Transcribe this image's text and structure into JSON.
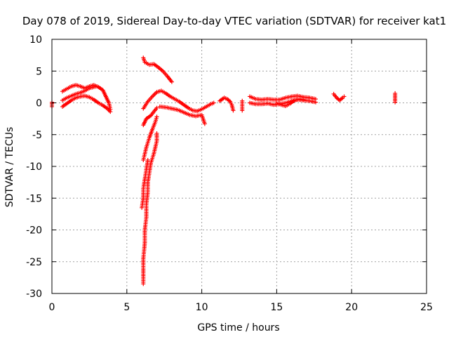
{
  "chart_data": {
    "type": "scatter",
    "title": "Day 078 of 2019, Sidereal Day-to-day VTEC variation (SDTVAR) for receiver kat1",
    "xlabel": "GPS time / hours",
    "ylabel": "SDTVAR / TECUs",
    "xlim": [
      0,
      25
    ],
    "ylim": [
      -30,
      10
    ],
    "xticks": [
      0,
      5,
      10,
      15,
      20,
      25
    ],
    "yticks": [
      10,
      5,
      0,
      -5,
      -10,
      -15,
      -20,
      -25,
      -30
    ],
    "grid": true,
    "marker": "+",
    "color": "#ff0000",
    "series": [
      {
        "name": "kat1",
        "segments": [
          [
            [
              0.0,
              0.1
            ],
            [
              0.0,
              -0.6
            ]
          ],
          [
            [
              0.7,
              1.8
            ],
            [
              1.0,
              2.2
            ],
            [
              1.3,
              2.6
            ],
            [
              1.6,
              2.8
            ],
            [
              1.9,
              2.6
            ],
            [
              2.2,
              2.3
            ],
            [
              2.5,
              2.6
            ],
            [
              2.8,
              2.8
            ],
            [
              3.1,
              2.5
            ],
            [
              3.4,
              2.0
            ],
            [
              3.6,
              1.0
            ],
            [
              3.8,
              0.0
            ],
            [
              3.9,
              -1.0
            ]
          ],
          [
            [
              0.7,
              0.4
            ],
            [
              1.0,
              0.8
            ],
            [
              1.3,
              1.1
            ],
            [
              1.6,
              1.4
            ],
            [
              1.9,
              1.6
            ],
            [
              2.2,
              1.9
            ],
            [
              2.5,
              2.3
            ],
            [
              2.8,
              2.5
            ],
            [
              3.0,
              2.6
            ]
          ],
          [
            [
              0.7,
              -0.6
            ],
            [
              1.0,
              -0.1
            ],
            [
              1.3,
              0.4
            ],
            [
              1.6,
              0.8
            ],
            [
              1.9,
              1.0
            ],
            [
              2.2,
              1.1
            ],
            [
              2.5,
              0.9
            ],
            [
              2.8,
              0.5
            ],
            [
              3.1,
              0.0
            ],
            [
              3.4,
              -0.4
            ],
            [
              3.7,
              -0.9
            ],
            [
              3.9,
              -1.4
            ]
          ],
          [
            [
              6.1,
              7.1
            ],
            [
              6.2,
              6.4
            ],
            [
              6.5,
              6.0
            ],
            [
              6.8,
              6.1
            ],
            [
              7.1,
              5.6
            ],
            [
              7.4,
              5.0
            ],
            [
              7.7,
              4.2
            ],
            [
              8.0,
              3.3
            ]
          ],
          [
            [
              6.1,
              -0.9
            ],
            [
              6.4,
              0.2
            ],
            [
              6.7,
              1.0
            ],
            [
              7.0,
              1.7
            ],
            [
              7.3,
              1.9
            ],
            [
              7.6,
              1.5
            ],
            [
              7.9,
              1.0
            ],
            [
              8.2,
              0.6
            ],
            [
              8.5,
              0.2
            ],
            [
              8.8,
              -0.3
            ],
            [
              9.1,
              -0.8
            ],
            [
              9.4,
              -1.2
            ],
            [
              9.7,
              -1.3
            ],
            [
              10.0,
              -1.0
            ],
            [
              10.3,
              -0.6
            ],
            [
              10.6,
              -0.2
            ],
            [
              10.8,
              0.0
            ]
          ],
          [
            [
              7.2,
              -0.6
            ],
            [
              7.6,
              -0.7
            ],
            [
              8.0,
              -0.9
            ],
            [
              8.4,
              -1.1
            ],
            [
              8.8,
              -1.5
            ],
            [
              9.2,
              -1.9
            ],
            [
              9.6,
              -2.1
            ],
            [
              10.0,
              -1.9
            ],
            [
              10.2,
              -3.3
            ]
          ],
          [
            [
              6.1,
              -3.5
            ],
            [
              6.3,
              -2.5
            ],
            [
              6.6,
              -2.0
            ],
            [
              6.8,
              -1.4
            ],
            [
              7.0,
              -0.8
            ]
          ],
          [
            [
              6.1,
              -9.0
            ],
            [
              6.3,
              -7.0
            ],
            [
              6.5,
              -5.5
            ],
            [
              6.7,
              -4.2
            ],
            [
              6.9,
              -3.0
            ],
            [
              7.0,
              -2.2
            ]
          ],
          [
            [
              6.1,
              -28.5
            ],
            [
              6.1,
              -27.2
            ],
            [
              6.1,
              -26.0
            ],
            [
              6.1,
              -24.5
            ],
            [
              6.2,
              -22.0
            ],
            [
              6.2,
              -20.0
            ],
            [
              6.3,
              -18.0
            ],
            [
              6.3,
              -16.0
            ],
            [
              6.4,
              -14.0
            ],
            [
              6.4,
              -12.5
            ],
            [
              6.5,
              -11.0
            ],
            [
              6.6,
              -9.5
            ],
            [
              6.8,
              -8.0
            ],
            [
              7.0,
              -6.0
            ],
            [
              7.0,
              -4.8
            ]
          ],
          [
            [
              6.0,
              -16.5
            ],
            [
              6.1,
              -15.0
            ],
            [
              6.1,
              -13.5
            ],
            [
              6.2,
              -12.0
            ],
            [
              6.3,
              -10.5
            ],
            [
              6.4,
              -9.0
            ]
          ],
          [
            [
              11.2,
              0.3
            ],
            [
              11.5,
              0.8
            ],
            [
              11.7,
              0.6
            ],
            [
              11.9,
              0.2
            ],
            [
              12.0,
              -0.3
            ],
            [
              12.1,
              -1.2
            ]
          ],
          [
            [
              12.7,
              0.3
            ],
            [
              12.7,
              -1.2
            ]
          ],
          [
            [
              13.2,
              1.0
            ],
            [
              13.6,
              0.6
            ],
            [
              14.0,
              0.5
            ],
            [
              14.4,
              0.6
            ],
            [
              14.8,
              0.5
            ],
            [
              15.2,
              0.5
            ],
            [
              15.6,
              0.8
            ],
            [
              16.0,
              1.0
            ],
            [
              16.4,
              1.1
            ],
            [
              16.8,
              0.9
            ],
            [
              17.2,
              0.8
            ],
            [
              17.6,
              0.6
            ]
          ],
          [
            [
              13.2,
              0.0
            ],
            [
              13.6,
              -0.2
            ],
            [
              14.0,
              -0.2
            ],
            [
              14.4,
              -0.1
            ],
            [
              14.8,
              -0.3
            ],
            [
              15.2,
              -0.2
            ],
            [
              15.6,
              0.0
            ],
            [
              16.0,
              0.3
            ],
            [
              16.4,
              0.5
            ],
            [
              16.8,
              0.4
            ],
            [
              17.2,
              0.3
            ],
            [
              17.6,
              0.1
            ]
          ],
          [
            [
              15.0,
              0.0
            ],
            [
              15.3,
              -0.3
            ],
            [
              15.6,
              -0.5
            ],
            [
              15.9,
              -0.1
            ],
            [
              16.2,
              0.4
            ],
            [
              16.5,
              0.6
            ],
            [
              16.8,
              0.5
            ]
          ],
          [
            [
              18.8,
              1.4
            ],
            [
              19.0,
              0.8
            ],
            [
              19.2,
              0.4
            ],
            [
              19.4,
              0.8
            ],
            [
              19.5,
              1.0
            ]
          ],
          [
            [
              22.9,
              1.5
            ],
            [
              22.9,
              0.1
            ]
          ]
        ]
      }
    ]
  }
}
